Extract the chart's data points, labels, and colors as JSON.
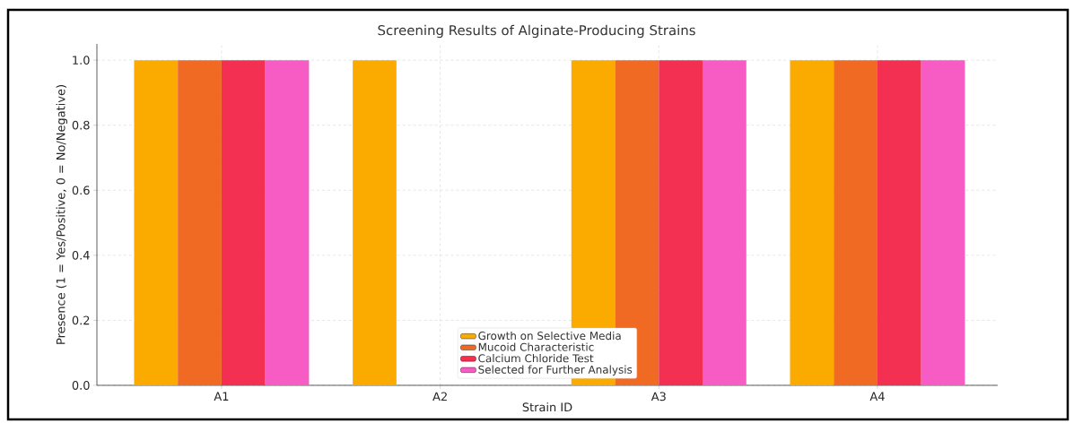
{
  "chart_data": {
    "type": "bar",
    "title": "Screening Results of Alginate-Producing Strains",
    "xlabel": "Strain ID",
    "ylabel": "Presence (1 = Yes/Positive, 0 = No/Negative)",
    "categories": [
      "A1",
      "A2",
      "A3",
      "A4"
    ],
    "series": [
      {
        "name": "Growth on Selective Media",
        "color": "#fbab00",
        "values": [
          1,
          1,
          1,
          1
        ]
      },
      {
        "name": "Mucoid Characteristic",
        "color": "#f06a23",
        "values": [
          1,
          0,
          1,
          1
        ]
      },
      {
        "name": "Calcium Chloride Test",
        "color": "#f33052",
        "values": [
          1,
          0,
          1,
          1
        ]
      },
      {
        "name": "Selected for Further Analysis",
        "color": "#f75bc4",
        "values": [
          1,
          0,
          1,
          1
        ]
      }
    ],
    "ylim": [
      0,
      1.05
    ],
    "yticks": [
      {
        "value": 0,
        "label": "0.0"
      },
      {
        "value": 0.2,
        "label": "0.2"
      },
      {
        "value": 0.4,
        "label": "0.4"
      },
      {
        "value": 0.6,
        "label": "0.6"
      },
      {
        "value": 0.8,
        "label": "0.8"
      },
      {
        "value": 1,
        "label": "1.0"
      }
    ],
    "grid": true,
    "legend": "bottom"
  }
}
